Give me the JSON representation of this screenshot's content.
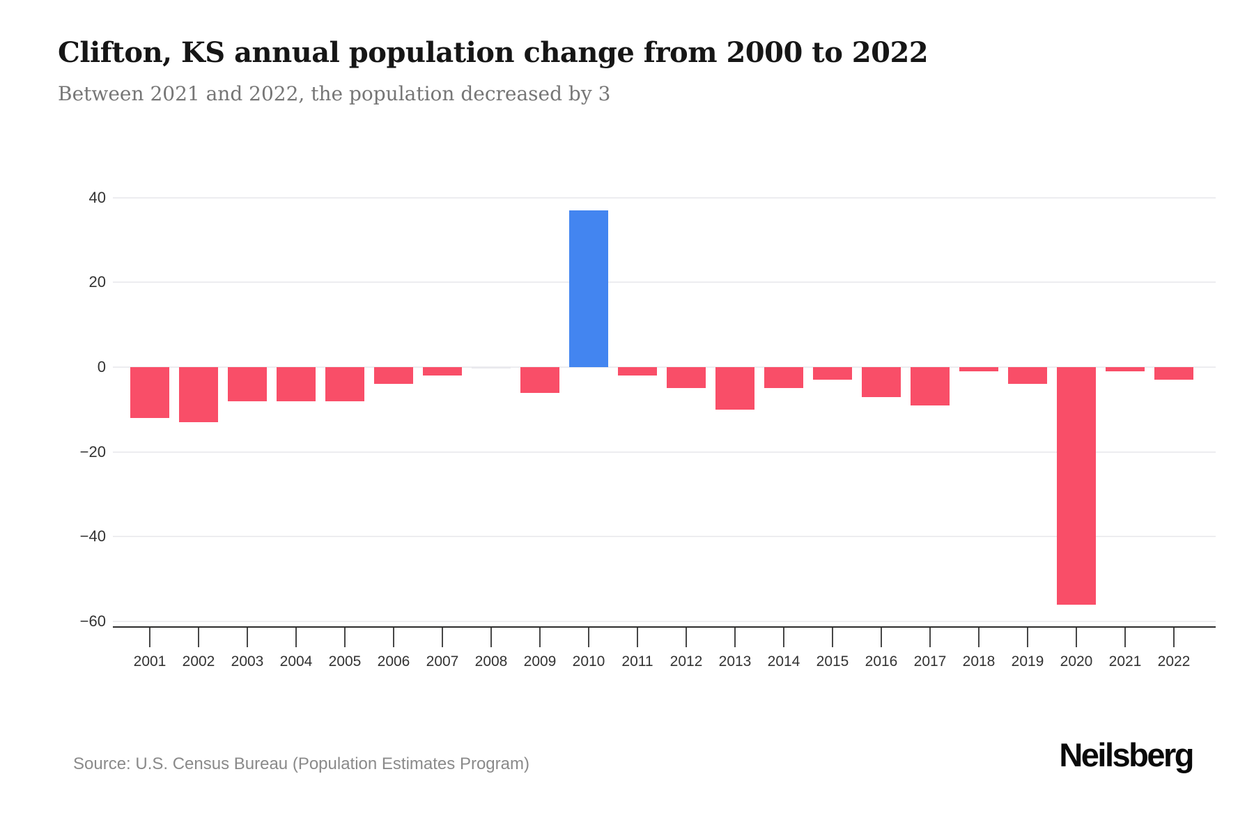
{
  "header": {
    "title": "Clifton, KS annual population change from 2000 to 2022",
    "subtitle": "Between 2021 and 2022, the population decreased by 3"
  },
  "footer": {
    "source": "Source: U.S. Census Bureau (Population Estimates Program)",
    "brand": "Neilsberg"
  },
  "colors": {
    "negative_bar": "#F94E68",
    "positive_bar": "#4385F0",
    "zero_bar": "#eaeaee",
    "gridline": "#ededf0",
    "axis_line": "#2b2b2b",
    "tick_label": "#333333"
  },
  "chart_data": {
    "type": "bar",
    "title": "Clifton, KS annual population change from 2000 to 2022",
    "subtitle": "Between 2021 and 2022, the population decreased by 3",
    "categories": [
      2001,
      2002,
      2003,
      2004,
      2005,
      2006,
      2007,
      2008,
      2009,
      2010,
      2011,
      2012,
      2013,
      2014,
      2015,
      2016,
      2017,
      2018,
      2019,
      2020,
      2021,
      2022
    ],
    "values": [
      -12,
      -13,
      -8,
      -8,
      -8,
      -4,
      -2,
      0,
      -6,
      37,
      -2,
      -5,
      -10,
      -5,
      -3,
      -7,
      -9,
      -1,
      -4,
      -56,
      -1,
      -3
    ],
    "xlabel": "",
    "ylabel": "",
    "ylim": [
      -60,
      40
    ],
    "y_ticks": [
      40,
      20,
      0,
      -20,
      -40,
      -60
    ],
    "grid": true,
    "legend": "none",
    "bar_color_rule": "negative values pink-red, positive values blue"
  }
}
